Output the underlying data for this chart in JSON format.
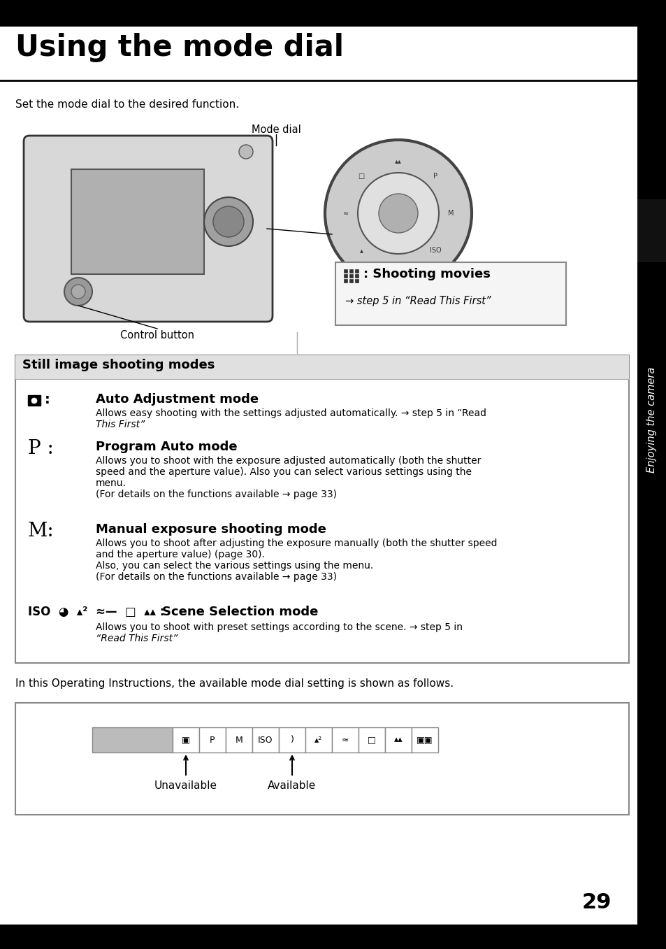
{
  "title": "Using the mode dial",
  "page_number": "29",
  "subtitle_text": "Set the mode dial to the desired function.",
  "mode_dial_label": "Mode dial",
  "control_button_label": "Control button",
  "shooting_movies_title": ": Shooting movies",
  "shooting_movies_sub": "→ step 5 in “Read This First”",
  "still_box_title": "Still image shooting modes",
  "auto_sym": "▣:",
  "auto_title": "Auto Adjustment mode",
  "auto_desc1": "Allows easy shooting with the settings adjusted automatically. → step 5 in “Read",
  "auto_desc2": "This First”",
  "p_sym": "P :",
  "p_title": "Program Auto mode",
  "p_desc1": "Allows you to shoot with the exposure adjusted automatically (both the shutter",
  "p_desc2": "speed and the aperture value). Also you can select various settings using the",
  "p_desc3": "menu.",
  "p_desc4": "(For details on the functions available → page 33)",
  "m_sym": "M:",
  "m_title": "Manual exposure shooting mode",
  "m_desc1": "Allows you to shoot after adjusting the exposure manually (both the shutter speed",
  "m_desc2": "and the aperture value) (page 30).",
  "m_desc3": "Also, you can select the various settings using the menu.",
  "m_desc4": "(For details on the functions available → page 33)",
  "scene_sym": "ISO  ◕  ▴²  ≈—  □  ▴▴ :",
  "scene_title": "Scene Selection mode",
  "scene_desc1": "Allows you to shoot with preset settings according to the scene. → step 5 in",
  "scene_desc2": "“Read This First”",
  "bottom_text": "In this Operating Instructions, the available mode dial setting is shown as follows.",
  "unavailable_label": "Unavailable",
  "available_label": "Available",
  "sidebar_text": "Enjoying the camera",
  "top_bar_color": "#000000",
  "bottom_bar_color": "#000000",
  "sidebar_color": "#000000",
  "sidebar_tab_color": "#2a2a2a",
  "page_bg": "#ffffff"
}
